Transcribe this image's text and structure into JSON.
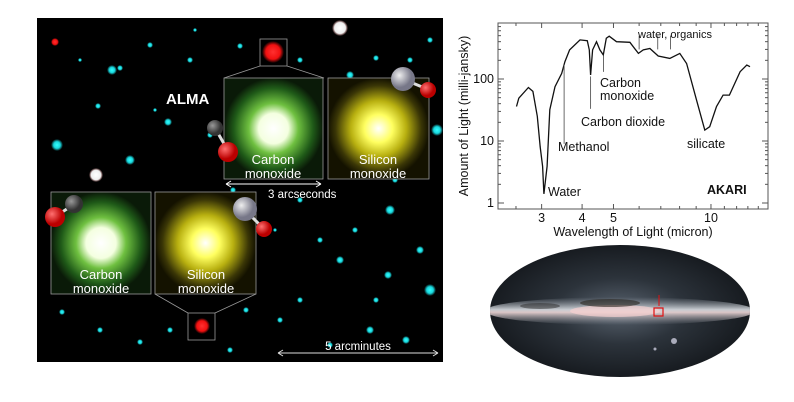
{
  "alma_panel": {
    "title": "ALMA",
    "insets": [
      {
        "label_line1": "Carbon",
        "label_line2": "monoxide"
      },
      {
        "label_line1": "Silicon",
        "label_line2": "monoxide"
      },
      {
        "label_line1": "Carbon",
        "label_line2": "monoxide"
      },
      {
        "label_line1": "Silicon",
        "label_line2": "monoxide"
      }
    ],
    "scale_small": "3 arcseconds",
    "scale_large": "5 arcminutes",
    "colors": {
      "background": "#000000",
      "stars": "#19d6dc",
      "target": "#ff1a1a",
      "carbon_monoxide": "#3fa03a",
      "silicon_monoxide": "#e6e21c"
    }
  },
  "sky_map": {
    "marker_color": "#e01010"
  },
  "chart_data": {
    "type": "line",
    "title": "",
    "xlabel": "Wavelength of Light (micron)",
    "ylabel": "Amount of Light (milli-jansky)",
    "xscale": "log",
    "yscale": "log",
    "xlim": [
      2.2,
      15
    ],
    "ylim": [
      0.8,
      800
    ],
    "xticks": [
      "3",
      "4",
      "5",
      "10"
    ],
    "yticks": [
      "1",
      "10",
      "100"
    ],
    "grid": false,
    "series": [
      {
        "x": [
          2.51,
          2.55,
          2.73,
          2.82,
          2.91,
          2.97,
          3.02,
          3.05,
          3.12,
          3.18,
          3.3,
          3.46,
          3.54,
          3.66,
          3.94,
          4.15,
          4.21,
          4.25,
          4.31,
          4.43,
          4.54,
          4.65,
          4.75,
          4.85,
          5.11,
          5.62,
          5.97,
          6.18,
          6.48,
          6.87,
          7.46,
          8.01,
          8.41,
          9.02,
          9.57,
          9.91,
          10.4,
          10.9,
          11.4,
          12.3,
          12.9,
          13.2
        ],
        "y": [
          36,
          49,
          73,
          63,
          25,
          8,
          3.9,
          1.4,
          3.9,
          32,
          75,
          123,
          190,
          295,
          427,
          415,
          295,
          116,
          295,
          400,
          295,
          245,
          455,
          490,
          400,
          390,
          259,
          295,
          310,
          235,
          215,
          259,
          178,
          46,
          15,
          17,
          36,
          55,
          55,
          131,
          168,
          158
        ]
      }
    ],
    "annotations": [
      {
        "text": "Water",
        "x": 3.05,
        "y_from": 1.4,
        "y_to": 1.4
      },
      {
        "text": "Methanol",
        "x": 3.52,
        "y_from": 170,
        "y_to": 9
      },
      {
        "text": "Carbon dioxide",
        "x": 4.25,
        "y_from": 110,
        "y_to": 33
      },
      {
        "text_line1": "Carbon",
        "text_line2": "monoxide",
        "x": 4.66,
        "y_from": 245,
        "y_to": 130
      },
      {
        "text": "water, organics",
        "x": [
          6.0,
          6.85,
          7.5
        ],
        "y_from": 500,
        "y_to": 300
      },
      {
        "text": "silicate"
      }
    ],
    "instrument_label": "AKARI",
    "color": "#111111"
  }
}
